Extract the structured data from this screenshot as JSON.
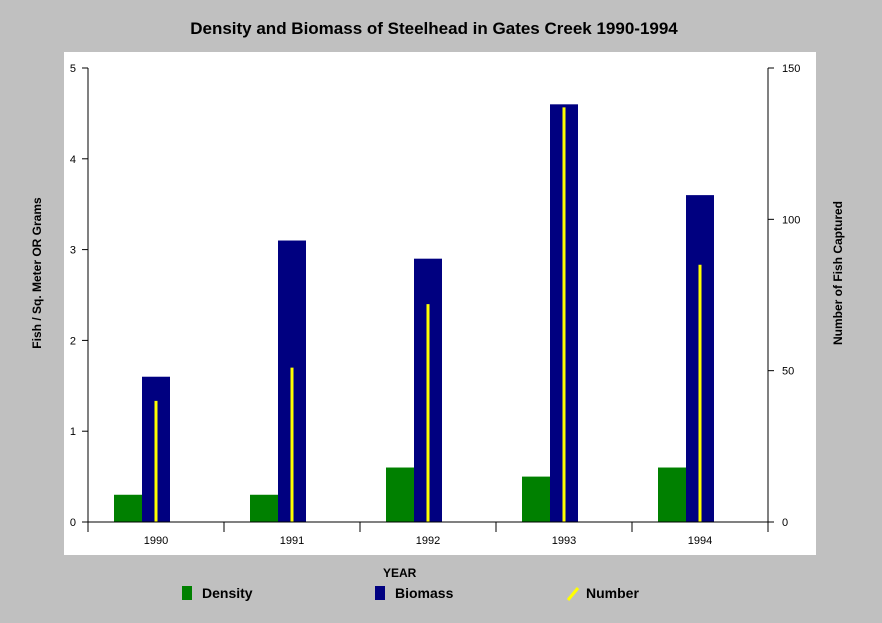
{
  "chart_data": {
    "type": "bar",
    "title": "Density and Biomass of Steelhead in Gates Creek 1990-1994",
    "xlabel": "YEAR",
    "ylabel_left": "Fish / Sq. Meter  OR  Grams",
    "ylabel_right": "Number of Fish Captured",
    "categories": [
      "1990",
      "1991",
      "1992",
      "1993",
      "1994"
    ],
    "ylim_left": [
      0,
      5
    ],
    "yticks_left": [
      "0",
      "1",
      "2",
      "3",
      "4",
      "5"
    ],
    "ylim_right": [
      0,
      150
    ],
    "yticks_right": [
      "0",
      "50",
      "100",
      "150"
    ],
    "grid": false,
    "legend_position": "bottom",
    "series": [
      {
        "name": "Density",
        "axis": "left",
        "style": "bar",
        "color": "#008000",
        "values": [
          0.3,
          0.3,
          0.6,
          0.5,
          0.6
        ]
      },
      {
        "name": "Biomass",
        "axis": "left",
        "style": "bar",
        "color": "#000080",
        "values": [
          1.6,
          3.1,
          2.9,
          4.6,
          3.6
        ]
      },
      {
        "name": "Number",
        "axis": "right",
        "style": "line",
        "color": "#ffff00",
        "values": [
          40,
          51,
          72,
          137,
          85
        ]
      }
    ]
  }
}
